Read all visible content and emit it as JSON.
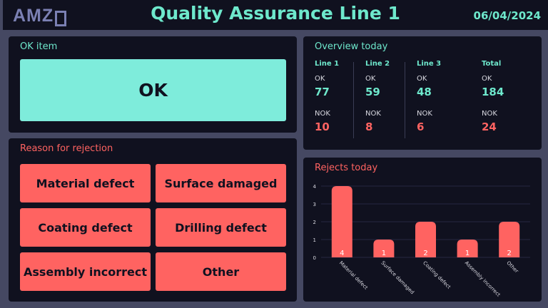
{
  "header": {
    "logo_text": "AMZ",
    "title": "Quality Assurance Line 1",
    "date": "06/04/2024"
  },
  "ok_panel": {
    "title": "OK item",
    "button_label": "OK"
  },
  "rejection_panel": {
    "title": "Reason for rejection",
    "buttons": [
      {
        "label": "Material defect"
      },
      {
        "label": "Surface damaged"
      },
      {
        "label": "Coating defect"
      },
      {
        "label": "Drilling defect"
      },
      {
        "label": "Assembly incorrect"
      },
      {
        "label": "Other"
      }
    ]
  },
  "overview": {
    "title": "Overview today",
    "ok_label": "OK",
    "nok_label": "NOK",
    "columns": [
      {
        "header": "Line 1",
        "ok": "77",
        "nok": "10"
      },
      {
        "header": "Line 2",
        "ok": "59",
        "nok": "8"
      },
      {
        "header": "Line 3",
        "ok": "48",
        "nok": "6"
      },
      {
        "header": "Total",
        "ok": "184",
        "nok": "24"
      }
    ]
  },
  "rejects_chart": {
    "title": "Rejects today"
  },
  "colors": {
    "accent_teal": "#6ee8cc",
    "ok_button": "#7eecdb",
    "reject_red": "#ff6361",
    "panel_bg": "#10111f",
    "page_bg": "#454862"
  },
  "chart_data": {
    "type": "bar",
    "title": "Rejects today",
    "categories": [
      "Material defect",
      "Surface damaged",
      "Coating defect",
      "Assembly incorrect",
      "Other"
    ],
    "values": [
      4,
      1,
      2,
      1,
      2
    ],
    "xlabel": "",
    "ylabel": "",
    "ylim": [
      0,
      4
    ],
    "yticks": [
      0,
      1,
      2,
      3,
      4
    ],
    "grid": true,
    "data_labels": true,
    "bar_color": "#ff6361"
  }
}
